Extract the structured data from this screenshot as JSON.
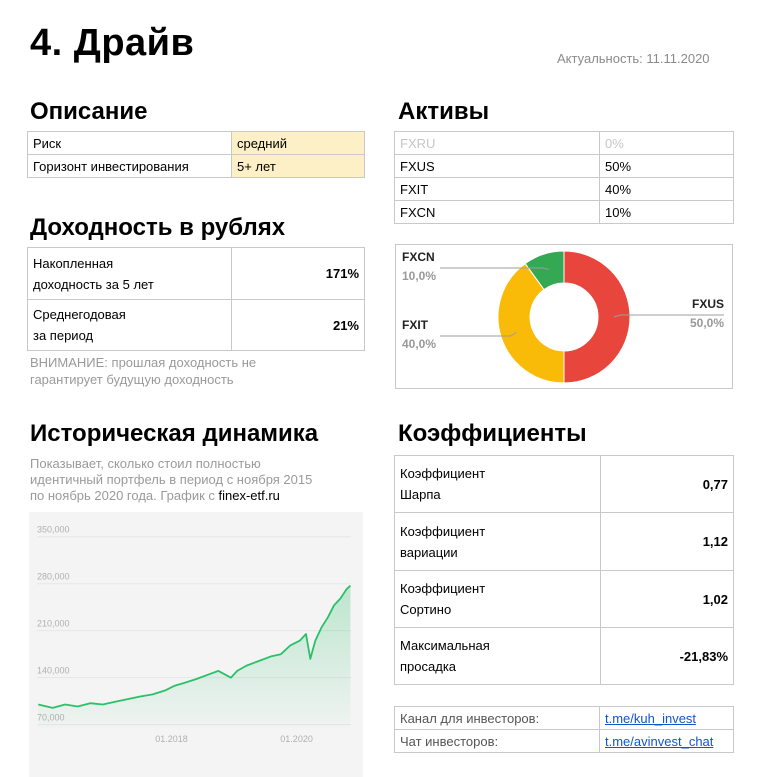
{
  "title": "4. Драйв",
  "updated": "Актуальность: 11.11.2020",
  "description": {
    "heading": "Описание",
    "rows": [
      {
        "label": "Риск",
        "value": "средний"
      },
      {
        "label": "Горизонт инвестирования",
        "value": "5+ лет"
      }
    ]
  },
  "assets": {
    "heading": "Активы",
    "rows": [
      {
        "ticker": "FXRU",
        "share": "0%"
      },
      {
        "ticker": "FXUS",
        "share": "50%"
      },
      {
        "ticker": "FXIT",
        "share": "40%"
      },
      {
        "ticker": "FXCN",
        "share": "10%"
      }
    ]
  },
  "returns": {
    "heading": "Доходность в рублях",
    "rows": [
      {
        "label_line1": "Накопленная",
        "label_line2": "доходность за 5 лет",
        "value": "171%"
      },
      {
        "label_line1": "Среднегодовая",
        "label_line2": "за период",
        "value": "21%"
      }
    ],
    "note_line1": "ВНИМАНИЕ: прошлая доходность не",
    "note_line2": "гарантирует будущую доходность"
  },
  "history": {
    "heading": "Историческая динамика",
    "desc_line1": "Показывает, сколько стоил полностью",
    "desc_line2": "идентичный портфель в период с ноября 2015",
    "desc_line3_prefix": "по ноябрь 2020 года. График с ",
    "desc_link": "finex-etf.ru"
  },
  "coefficients": {
    "heading": "Коэффициенты",
    "rows": [
      {
        "label_line1": "Коэффициент",
        "label_line2": "Шарпа",
        "value": "0,77"
      },
      {
        "label_line1": "Коэффициент",
        "label_line2": "вариации",
        "value": "1,12"
      },
      {
        "label_line1": "Коэффициент",
        "label_line2": "Сортино",
        "value": "1,02"
      },
      {
        "label_line1": "Максимальная",
        "label_line2": "просадка",
        "value": "-21,83%"
      }
    ]
  },
  "links": [
    {
      "label": "Канал для инвесторов:",
      "url": "t.me/kuh_invest"
    },
    {
      "label": "Чат инвесторов:",
      "url": "t.me/avinvest_chat"
    }
  ],
  "chart_data": [
    {
      "type": "pie",
      "donut": true,
      "slices": [
        {
          "name": "FXUS",
          "value": 50.0,
          "label": "50,0%",
          "color": "#e8453c"
        },
        {
          "name": "FXIT",
          "value": 40.0,
          "label": "40,0%",
          "color": "#f9bb07"
        },
        {
          "name": "FXCN",
          "value": 10.0,
          "label": "10,0%",
          "color": "#34a853"
        }
      ]
    },
    {
      "type": "area",
      "line_color": "#2bc06a",
      "ylim": [
        65000,
        360000
      ],
      "y_ticks": [
        {
          "value": 350000,
          "label": "350,000"
        },
        {
          "value": 280000,
          "label": "280,000"
        },
        {
          "value": 210000,
          "label": "210,000"
        },
        {
          "value": 140000,
          "label": "140,000"
        },
        {
          "value": 70000,
          "label": "70,000"
        }
      ],
      "x_range": [
        2015.85,
        2020.87
      ],
      "x_ticks": [
        {
          "value": 2018.0,
          "label": "01.2018"
        },
        {
          "value": 2020.0,
          "label": "01.2020"
        }
      ],
      "x": [
        2015.87,
        2016.1,
        2016.3,
        2016.5,
        2016.7,
        2016.9,
        2017.1,
        2017.3,
        2017.5,
        2017.7,
        2017.9,
        2018.05,
        2018.2,
        2018.4,
        2018.6,
        2018.75,
        2018.95,
        2019.05,
        2019.2,
        2019.4,
        2019.6,
        2019.75,
        2019.9,
        2020.05,
        2020.15,
        2020.22,
        2020.3,
        2020.4,
        2020.5,
        2020.6,
        2020.7,
        2020.8,
        2020.86
      ],
      "y": [
        100000,
        95000,
        100000,
        97000,
        102000,
        100000,
        104000,
        108000,
        112000,
        115000,
        121000,
        128000,
        132000,
        138000,
        145000,
        150000,
        140000,
        150000,
        158000,
        165000,
        172000,
        175000,
        188000,
        195000,
        205000,
        168000,
        195000,
        215000,
        230000,
        248000,
        258000,
        272000,
        277000
      ]
    }
  ]
}
